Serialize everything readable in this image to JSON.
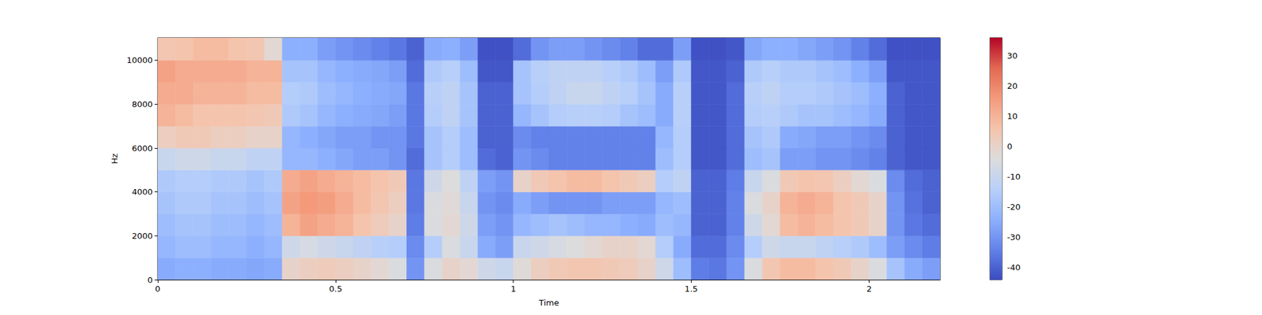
{
  "chart_data": {
    "type": "heatmap",
    "x_label": "Time",
    "y_label": "Hz",
    "xlim": [
      0,
      2.2
    ],
    "xticks": [
      0,
      0.5,
      1,
      1.5,
      2
    ],
    "ylim": [
      0,
      11025
    ],
    "yticks": [
      0,
      2000,
      4000,
      6000,
      8000,
      10000
    ],
    "x_edges": [
      0,
      0.05,
      0.1,
      0.15,
      0.2,
      0.25,
      0.3,
      0.35,
      0.4,
      0.45,
      0.5,
      0.55,
      0.6,
      0.65,
      0.7,
      0.75,
      0.8,
      0.85,
      0.9,
      0.95,
      1,
      1.05,
      1.1,
      1.15,
      1.2,
      1.25,
      1.3,
      1.35,
      1.4,
      1.45,
      1.5,
      1.55,
      1.6,
      1.65,
      1.7,
      1.75,
      1.8,
      1.85,
      1.9,
      1.95,
      2,
      2.05,
      2.1,
      2.15,
      2.2
    ],
    "y_edges": [
      0,
      1000,
      2000,
      3000,
      4000,
      5000,
      6000,
      7000,
      8000,
      9000,
      10000,
      11025
    ],
    "cells": [
      [
        -25,
        -24,
        -24,
        -25,
        -25,
        -26,
        -25,
        0,
        2,
        3,
        2,
        0,
        -2,
        -5,
        -30,
        -5,
        0,
        -2,
        -8,
        -10,
        -3,
        2,
        4,
        5,
        5,
        4,
        3,
        0,
        -8,
        -20,
        -35,
        -36,
        -30,
        -5,
        5,
        8,
        8,
        6,
        4,
        0,
        -5,
        -18,
        -25,
        -28
      ],
      [
        -22,
        -20,
        -20,
        -22,
        -22,
        -24,
        -22,
        -8,
        -6,
        -8,
        -10,
        -12,
        -14,
        -15,
        -32,
        -15,
        -5,
        -10,
        -25,
        -28,
        -10,
        -8,
        -6,
        -4,
        -2,
        0,
        0,
        -2,
        -15,
        -25,
        -38,
        -38,
        -32,
        -15,
        -8,
        -10,
        -10,
        -12,
        -14,
        -16,
        -20,
        -28,
        -32,
        -35
      ],
      [
        -20,
        -18,
        -18,
        -20,
        -20,
        -22,
        -20,
        10,
        14,
        12,
        10,
        6,
        3,
        0,
        -35,
        -5,
        -2,
        -8,
        -28,
        -30,
        -22,
        -20,
        -18,
        -20,
        -22,
        -22,
        -24,
        -25,
        -20,
        -22,
        -40,
        -40,
        -34,
        -8,
        -2,
        8,
        10,
        8,
        6,
        4,
        0,
        -30,
        -36,
        -38
      ],
      [
        -18,
        -16,
        -16,
        -18,
        -18,
        -20,
        -18,
        14,
        16,
        15,
        12,
        8,
        5,
        2,
        -36,
        -5,
        -3,
        -10,
        -30,
        -32,
        -25,
        -28,
        -30,
        -30,
        -30,
        -28,
        -28,
        -28,
        -22,
        -20,
        -40,
        -40,
        -34,
        -5,
        0,
        10,
        12,
        10,
        6,
        4,
        0,
        -30,
        -37,
        -40
      ],
      [
        -16,
        -15,
        -15,
        -16,
        -16,
        -18,
        -16,
        12,
        14,
        12,
        10,
        8,
        6,
        4,
        -36,
        -8,
        -4,
        -12,
        -28,
        -30,
        0,
        4,
        6,
        8,
        8,
        6,
        4,
        2,
        -15,
        -12,
        -40,
        -40,
        -35,
        -10,
        -5,
        4,
        6,
        5,
        2,
        -2,
        -5,
        -32,
        -38,
        -40
      ],
      [
        -10,
        -8,
        -8,
        -10,
        -10,
        -12,
        -12,
        -22,
        -22,
        -24,
        -26,
        -28,
        -28,
        -30,
        -38,
        -18,
        -15,
        -20,
        -38,
        -40,
        -30,
        -32,
        -34,
        -34,
        -34,
        -34,
        -34,
        -34,
        -20,
        -15,
        -42,
        -42,
        -38,
        -20,
        -18,
        -28,
        -28,
        -30,
        -30,
        -32,
        -34,
        -40,
        -42,
        -42
      ],
      [
        2,
        4,
        4,
        2,
        2,
        0,
        0,
        -22,
        -24,
        -26,
        -28,
        -28,
        -30,
        -30,
        -36,
        -18,
        -15,
        -20,
        -40,
        -40,
        -32,
        -34,
        -34,
        -34,
        -34,
        -34,
        -34,
        -34,
        -22,
        -15,
        -42,
        -42,
        -38,
        -18,
        -16,
        -25,
        -26,
        -28,
        -28,
        -30,
        -32,
        -40,
        -42,
        -42
      ],
      [
        10,
        8,
        6,
        6,
        6,
        5,
        4,
        -16,
        -18,
        -22,
        -24,
        -25,
        -26,
        -28,
        -36,
        -15,
        -12,
        -18,
        -40,
        -40,
        -22,
        -18,
        -15,
        -14,
        -14,
        -15,
        -18,
        -20,
        -25,
        -14,
        -42,
        -42,
        -38,
        -15,
        -14,
        -16,
        -18,
        -18,
        -20,
        -22,
        -25,
        -40,
        -42,
        -42
      ],
      [
        12,
        12,
        10,
        10,
        10,
        8,
        8,
        -15,
        -16,
        -20,
        -22,
        -24,
        -25,
        -26,
        -36,
        -14,
        -12,
        -18,
        -40,
        -40,
        -18,
        -15,
        -12,
        -10,
        -10,
        -12,
        -14,
        -18,
        -25,
        -14,
        -42,
        -42,
        -38,
        -14,
        -12,
        -15,
        -15,
        -16,
        -18,
        -20,
        -24,
        -40,
        -42,
        -42
      ],
      [
        14,
        12,
        12,
        12,
        12,
        10,
        10,
        -18,
        -18,
        -22,
        -24,
        -25,
        -26,
        -28,
        -38,
        -16,
        -14,
        -20,
        -42,
        -42,
        -18,
        -14,
        -12,
        -12,
        -12,
        -14,
        -16,
        -20,
        -28,
        -16,
        -42,
        -42,
        -40,
        -16,
        -14,
        -16,
        -16,
        -18,
        -20,
        -24,
        -28,
        -42,
        -42,
        -42
      ],
      [
        5,
        6,
        8,
        8,
        6,
        5,
        -2,
        -24,
        -24,
        -28,
        -30,
        -32,
        -34,
        -36,
        -40,
        -25,
        -24,
        -28,
        -43,
        -43,
        -38,
        -30,
        -28,
        -28,
        -30,
        -32,
        -34,
        -38,
        -38,
        -28,
        -43,
        -43,
        -42,
        -26,
        -24,
        -24,
        -26,
        -28,
        -30,
        -34,
        -38,
        -43,
        -43,
        -43
      ]
    ],
    "colorbar": {
      "range": [
        -44,
        36
      ],
      "ticks": [
        -40,
        -30,
        -20,
        -10,
        0,
        10,
        20,
        30
      ]
    }
  }
}
